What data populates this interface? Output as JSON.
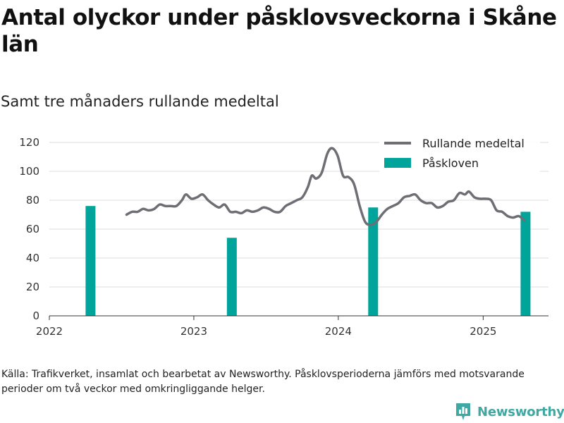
{
  "title": "Antal olyckor under påsklovsveckorna i Skåne län",
  "subtitle": "Samt tre månaders rullande medeltal",
  "caption": "Källa: Trafikverket, insamlat och bearbetat av Newsworthy. Påsklovsperioderna jämförs med motsvarande perioder om två veckor med omkringliggande helger.",
  "brand": {
    "name": "Newsworthy",
    "icon": "newsworthy-logo-icon"
  },
  "colors": {
    "line": "#6e6e74",
    "bar": "#00a49a",
    "grid": "#dddddd",
    "brand": "#3fa8a3"
  },
  "chart_data": {
    "type": "bar+line",
    "x_axis": {
      "type": "date",
      "range": [
        "2022-01-01",
        "2025-06-15"
      ],
      "tick_labels": [
        "2022",
        "2023",
        "2024",
        "2025"
      ]
    },
    "y_axis": {
      "range": [
        0,
        120
      ],
      "tick_labels": [
        "0",
        "20",
        "40",
        "60",
        "80",
        "100",
        "120"
      ]
    },
    "grid": true,
    "legend": {
      "placement": "top-right",
      "entries": [
        "Rullande medeltal",
        "Påskloven"
      ]
    },
    "series": [
      {
        "name": "Påskloven",
        "type": "bar",
        "points": [
          {
            "x": "2022-04-15",
            "y": 76
          },
          {
            "x": "2023-04-07",
            "y": 54
          },
          {
            "x": "2024-03-29",
            "y": 75
          },
          {
            "x": "2025-04-18",
            "y": 72
          }
        ]
      },
      {
        "name": "Rullande medeltal",
        "type": "line",
        "points": [
          {
            "x": "2022-07-15",
            "y": 70
          },
          {
            "x": "2022-07-29",
            "y": 72
          },
          {
            "x": "2022-08-12",
            "y": 72
          },
          {
            "x": "2022-08-26",
            "y": 74
          },
          {
            "x": "2022-09-09",
            "y": 73
          },
          {
            "x": "2022-09-23",
            "y": 74
          },
          {
            "x": "2022-10-07",
            "y": 77
          },
          {
            "x": "2022-10-21",
            "y": 76
          },
          {
            "x": "2022-11-04",
            "y": 76
          },
          {
            "x": "2022-11-18",
            "y": 76
          },
          {
            "x": "2022-12-02",
            "y": 80
          },
          {
            "x": "2022-12-12",
            "y": 84
          },
          {
            "x": "2022-12-26",
            "y": 81
          },
          {
            "x": "2023-01-09",
            "y": 82
          },
          {
            "x": "2023-01-23",
            "y": 84
          },
          {
            "x": "2023-02-06",
            "y": 80
          },
          {
            "x": "2023-02-20",
            "y": 77
          },
          {
            "x": "2023-03-06",
            "y": 75
          },
          {
            "x": "2023-03-20",
            "y": 77
          },
          {
            "x": "2023-04-03",
            "y": 72
          },
          {
            "x": "2023-04-17",
            "y": 72
          },
          {
            "x": "2023-05-01",
            "y": 71
          },
          {
            "x": "2023-05-15",
            "y": 73
          },
          {
            "x": "2023-05-29",
            "y": 72
          },
          {
            "x": "2023-06-12",
            "y": 73
          },
          {
            "x": "2023-06-26",
            "y": 75
          },
          {
            "x": "2023-07-10",
            "y": 74
          },
          {
            "x": "2023-07-24",
            "y": 72
          },
          {
            "x": "2023-08-07",
            "y": 72
          },
          {
            "x": "2023-08-21",
            "y": 76
          },
          {
            "x": "2023-09-04",
            "y": 78
          },
          {
            "x": "2023-09-18",
            "y": 80
          },
          {
            "x": "2023-10-02",
            "y": 82
          },
          {
            "x": "2023-10-16",
            "y": 89
          },
          {
            "x": "2023-10-26",
            "y": 97
          },
          {
            "x": "2023-11-06",
            "y": 95
          },
          {
            "x": "2023-11-20",
            "y": 99
          },
          {
            "x": "2023-12-04",
            "y": 112
          },
          {
            "x": "2023-12-16",
            "y": 116
          },
          {
            "x": "2023-12-30",
            "y": 111
          },
          {
            "x": "2024-01-13",
            "y": 97
          },
          {
            "x": "2024-01-27",
            "y": 96
          },
          {
            "x": "2024-02-10",
            "y": 91
          },
          {
            "x": "2024-02-24",
            "y": 76
          },
          {
            "x": "2024-03-09",
            "y": 65
          },
          {
            "x": "2024-03-23",
            "y": 63
          },
          {
            "x": "2024-04-06",
            "y": 65
          },
          {
            "x": "2024-04-20",
            "y": 70
          },
          {
            "x": "2024-05-04",
            "y": 74
          },
          {
            "x": "2024-05-18",
            "y": 76
          },
          {
            "x": "2024-06-01",
            "y": 78
          },
          {
            "x": "2024-06-15",
            "y": 82
          },
          {
            "x": "2024-06-29",
            "y": 83
          },
          {
            "x": "2024-07-13",
            "y": 84
          },
          {
            "x": "2024-07-27",
            "y": 80
          },
          {
            "x": "2024-08-10",
            "y": 78
          },
          {
            "x": "2024-08-24",
            "y": 78
          },
          {
            "x": "2024-09-07",
            "y": 75
          },
          {
            "x": "2024-09-21",
            "y": 76
          },
          {
            "x": "2024-10-05",
            "y": 79
          },
          {
            "x": "2024-10-19",
            "y": 80
          },
          {
            "x": "2024-11-02",
            "y": 85
          },
          {
            "x": "2024-11-16",
            "y": 84
          },
          {
            "x": "2024-11-26",
            "y": 86
          },
          {
            "x": "2024-12-10",
            "y": 82
          },
          {
            "x": "2024-12-24",
            "y": 81
          },
          {
            "x": "2025-01-07",
            "y": 81
          },
          {
            "x": "2025-01-21",
            "y": 80
          },
          {
            "x": "2025-02-04",
            "y": 73
          },
          {
            "x": "2025-02-18",
            "y": 72
          },
          {
            "x": "2025-03-04",
            "y": 69
          },
          {
            "x": "2025-03-18",
            "y": 68
          },
          {
            "x": "2025-04-01",
            "y": 69
          },
          {
            "x": "2025-04-15",
            "y": 66
          }
        ]
      }
    ]
  }
}
